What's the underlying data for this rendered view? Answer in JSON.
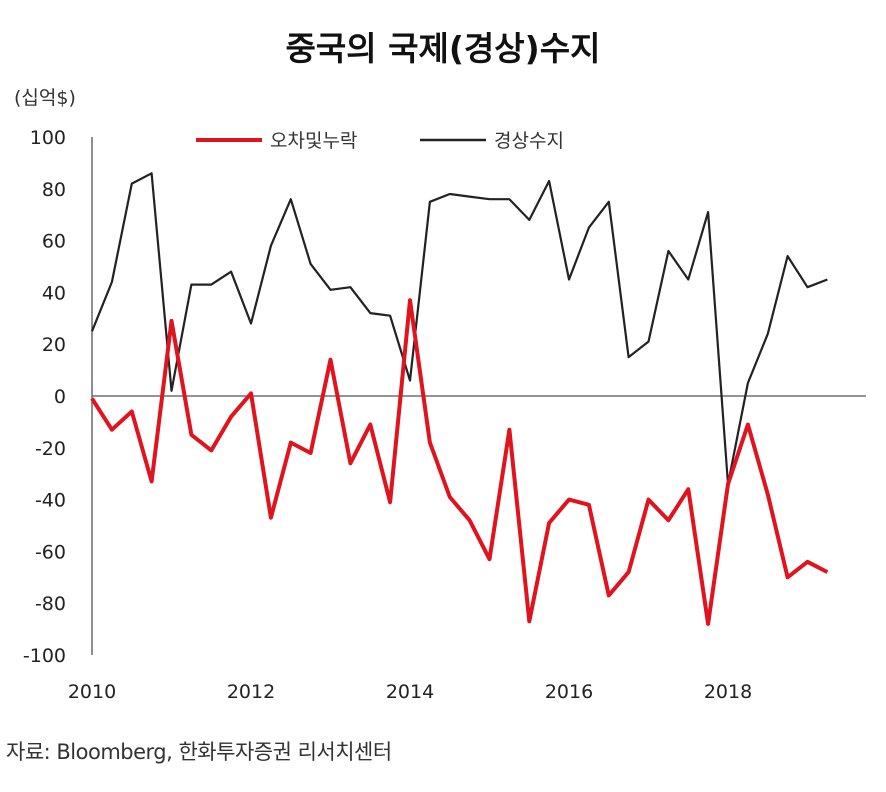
{
  "chart_data": {
    "type": "line",
    "title": "중국의 국제(경상)수지",
    "unit": "(십억$)",
    "source": "자료: Bloomberg, 한화투자증권 리서치센터",
    "ylim": [
      -100,
      100
    ],
    "yticks": [
      100,
      80,
      60,
      40,
      20,
      0,
      -20,
      -40,
      -60,
      -80,
      -100
    ],
    "xlim": [
      2010,
      2019.6
    ],
    "xticks": [
      2010,
      2012,
      2014,
      2016,
      2018
    ],
    "legend_position": "top",
    "series": [
      {
        "name": "오차및누락",
        "color": "#e0141e",
        "points": [
          [
            2010.0,
            -1
          ],
          [
            2010.25,
            -13
          ],
          [
            2010.5,
            -6
          ],
          [
            2010.75,
            -33
          ],
          [
            2011.0,
            29
          ],
          [
            2011.25,
            -15
          ],
          [
            2011.5,
            -21
          ],
          [
            2011.75,
            -8
          ],
          [
            2012.0,
            1
          ],
          [
            2012.25,
            -47
          ],
          [
            2012.5,
            -18
          ],
          [
            2012.75,
            -22
          ],
          [
            2013.0,
            14
          ],
          [
            2013.25,
            -26
          ],
          [
            2013.5,
            -11
          ],
          [
            2013.75,
            -41
          ],
          [
            2014.0,
            37
          ],
          [
            2014.25,
            -18
          ],
          [
            2014.5,
            -39
          ],
          [
            2014.75,
            -48
          ],
          [
            2015.0,
            -63
          ],
          [
            2015.25,
            -13
          ],
          [
            2015.5,
            -87
          ],
          [
            2015.75,
            -49
          ],
          [
            2016.0,
            -40
          ],
          [
            2016.25,
            -42
          ],
          [
            2016.5,
            -77
          ],
          [
            2016.75,
            -68
          ],
          [
            2017.0,
            -40
          ],
          [
            2017.25,
            -48
          ],
          [
            2017.5,
            -36
          ],
          [
            2017.75,
            -88
          ],
          [
            2018.0,
            -34
          ],
          [
            2018.25,
            -11
          ],
          [
            2018.5,
            -38
          ],
          [
            2018.75,
            -70
          ],
          [
            2019.0,
            -64
          ],
          [
            2019.25,
            -68
          ]
        ]
      },
      {
        "name": "경상수지",
        "color": "#222222",
        "points": [
          [
            2010.0,
            25
          ],
          [
            2010.25,
            44
          ],
          [
            2010.5,
            82
          ],
          [
            2010.75,
            86
          ],
          [
            2011.0,
            2
          ],
          [
            2011.25,
            43
          ],
          [
            2011.5,
            43
          ],
          [
            2011.75,
            48
          ],
          [
            2012.0,
            28
          ],
          [
            2012.25,
            58
          ],
          [
            2012.5,
            76
          ],
          [
            2012.75,
            51
          ],
          [
            2013.0,
            41
          ],
          [
            2013.25,
            42
          ],
          [
            2013.5,
            32
          ],
          [
            2013.75,
            31
          ],
          [
            2014.0,
            6
          ],
          [
            2014.25,
            75
          ],
          [
            2014.5,
            78
          ],
          [
            2014.75,
            77
          ],
          [
            2015.0,
            76
          ],
          [
            2015.25,
            76
          ],
          [
            2015.5,
            68
          ],
          [
            2015.75,
            83
          ],
          [
            2016.0,
            45
          ],
          [
            2016.25,
            65
          ],
          [
            2016.5,
            75
          ],
          [
            2016.75,
            15
          ],
          [
            2017.0,
            21
          ],
          [
            2017.25,
            56
          ],
          [
            2017.5,
            45
          ],
          [
            2017.75,
            71
          ],
          [
            2018.0,
            -34
          ],
          [
            2018.25,
            5
          ],
          [
            2018.5,
            24
          ],
          [
            2018.75,
            54
          ],
          [
            2019.0,
            42
          ],
          [
            2019.25,
            45
          ]
        ]
      }
    ]
  }
}
